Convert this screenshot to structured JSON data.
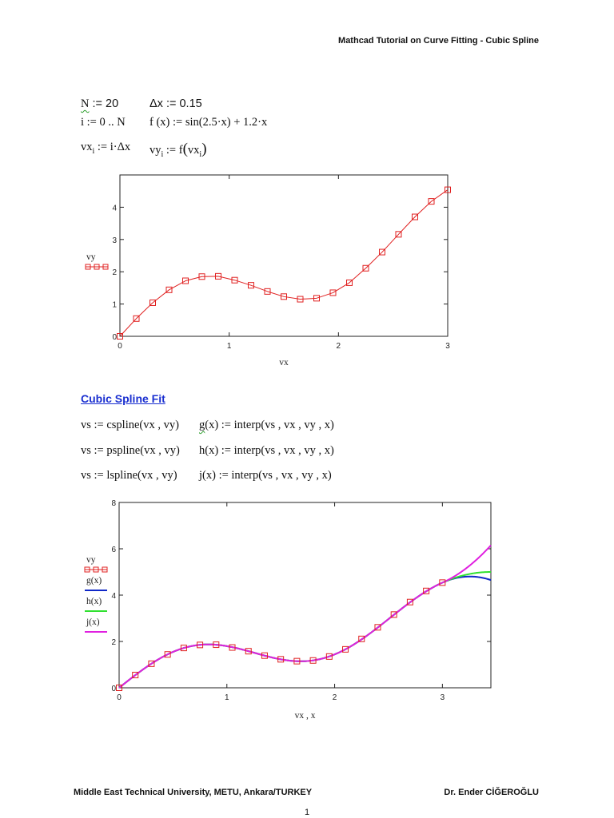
{
  "header": {
    "title": "Mathcad Tutorial on Curve Fitting - Cubic Spline"
  },
  "definitions": {
    "line1": {
      "left": "N := 20",
      "left_var": "N",
      "left_rest": " := 20",
      "right": "Δx := 0.15"
    },
    "line2": {
      "left": "i := 0 .. N",
      "right": "f (x) := sin(2.5·x) + 1.2·x"
    },
    "line3": {
      "left_base": "vx",
      "left_sub": "i",
      "left_rest": " := i·Δx",
      "right_base": "vy",
      "right_sub": "i",
      "right_mid": " := f",
      "right_arg_base": "vx",
      "right_arg_sub": "i"
    }
  },
  "section": {
    "title": "Cubic Spline Fit"
  },
  "spline_defs": [
    {
      "left": "vs := cspline(vx , vy)",
      "fn": "g",
      "right_rest": "(x) := interp(vs , vx , vy , x)"
    },
    {
      "left": "vs := pspline(vx , vy)",
      "fn": "h",
      "right_rest": "(x) := interp(vs , vx , vy , x)"
    },
    {
      "left": "vs := lspline(vx , vy)",
      "fn": "j",
      "right_rest": "(x) := interp(vs , vx , vy , x)"
    }
  ],
  "footer": {
    "left": "Middle East Technical University, METU, Ankara/TURKEY",
    "right": "Dr. Ender CİĞEROĞLU",
    "page": "1"
  },
  "colors": {
    "data_red": "#e02020",
    "g_blue": "#1028c8",
    "h_green": "#30e030",
    "j_magenta": "#e020e0",
    "section_blue": "#1a2fd0"
  },
  "chart_data": [
    {
      "type": "line",
      "title": "",
      "xlabel": "vx",
      "ylabel": "vy",
      "xlim": [
        0,
        3
      ],
      "ylim": [
        0,
        5
      ],
      "x_ticks": [
        "0",
        "1",
        "2",
        "3"
      ],
      "y_ticks": [
        "0",
        "1",
        "2",
        "3",
        "4"
      ],
      "grid": false,
      "legend": [
        {
          "name": "vy",
          "style": "red line with square markers"
        }
      ],
      "legend_position": "left",
      "x": [
        0,
        0.15,
        0.3,
        0.45,
        0.6,
        0.75,
        0.9,
        1.05,
        1.2,
        1.35,
        1.5,
        1.65,
        1.8,
        1.95,
        2.1,
        2.25,
        2.4,
        2.55,
        2.7,
        2.85,
        3.0
      ],
      "series": [
        {
          "name": "vy",
          "values": [
            0,
            0.55,
            1.04,
            1.44,
            1.72,
            1.85,
            1.86,
            1.74,
            1.58,
            1.39,
            1.23,
            1.15,
            1.18,
            1.35,
            1.66,
            2.11,
            2.61,
            3.16,
            3.7,
            4.18,
            4.54
          ]
        }
      ]
    },
    {
      "type": "line",
      "title": "",
      "xlabel": "vx , x",
      "ylabel": "",
      "xlim": [
        0,
        3.45
      ],
      "ylim": [
        0,
        8
      ],
      "x_ticks": [
        "0",
        "1",
        "2",
        "3"
      ],
      "y_ticks": [
        "0",
        "2",
        "4",
        "6",
        "8"
      ],
      "grid": false,
      "legend": [
        {
          "name": "vy",
          "style": "red squares with line"
        },
        {
          "name": "g(x)",
          "style": "blue line"
        },
        {
          "name": "h(x)",
          "style": "green line"
        },
        {
          "name": "j(x)",
          "style": "magenta line"
        }
      ],
      "legend_position": "left",
      "x": [
        0,
        0.15,
        0.3,
        0.45,
        0.6,
        0.75,
        0.9,
        1.05,
        1.2,
        1.35,
        1.5,
        1.65,
        1.8,
        1.95,
        2.1,
        2.25,
        2.4,
        2.55,
        2.7,
        2.85,
        3.0
      ],
      "series": [
        {
          "name": "vy",
          "values": [
            0,
            0.55,
            1.04,
            1.44,
            1.72,
            1.85,
            1.86,
            1.74,
            1.58,
            1.39,
            1.23,
            1.15,
            1.18,
            1.35,
            1.66,
            2.11,
            2.61,
            3.16,
            3.7,
            4.18,
            4.54
          ]
        }
      ],
      "extrapolation_end_values_at_x_3_45": {
        "g(x)": 4.65,
        "h(x)": 5.0,
        "j(x)": 6.15
      }
    }
  ]
}
